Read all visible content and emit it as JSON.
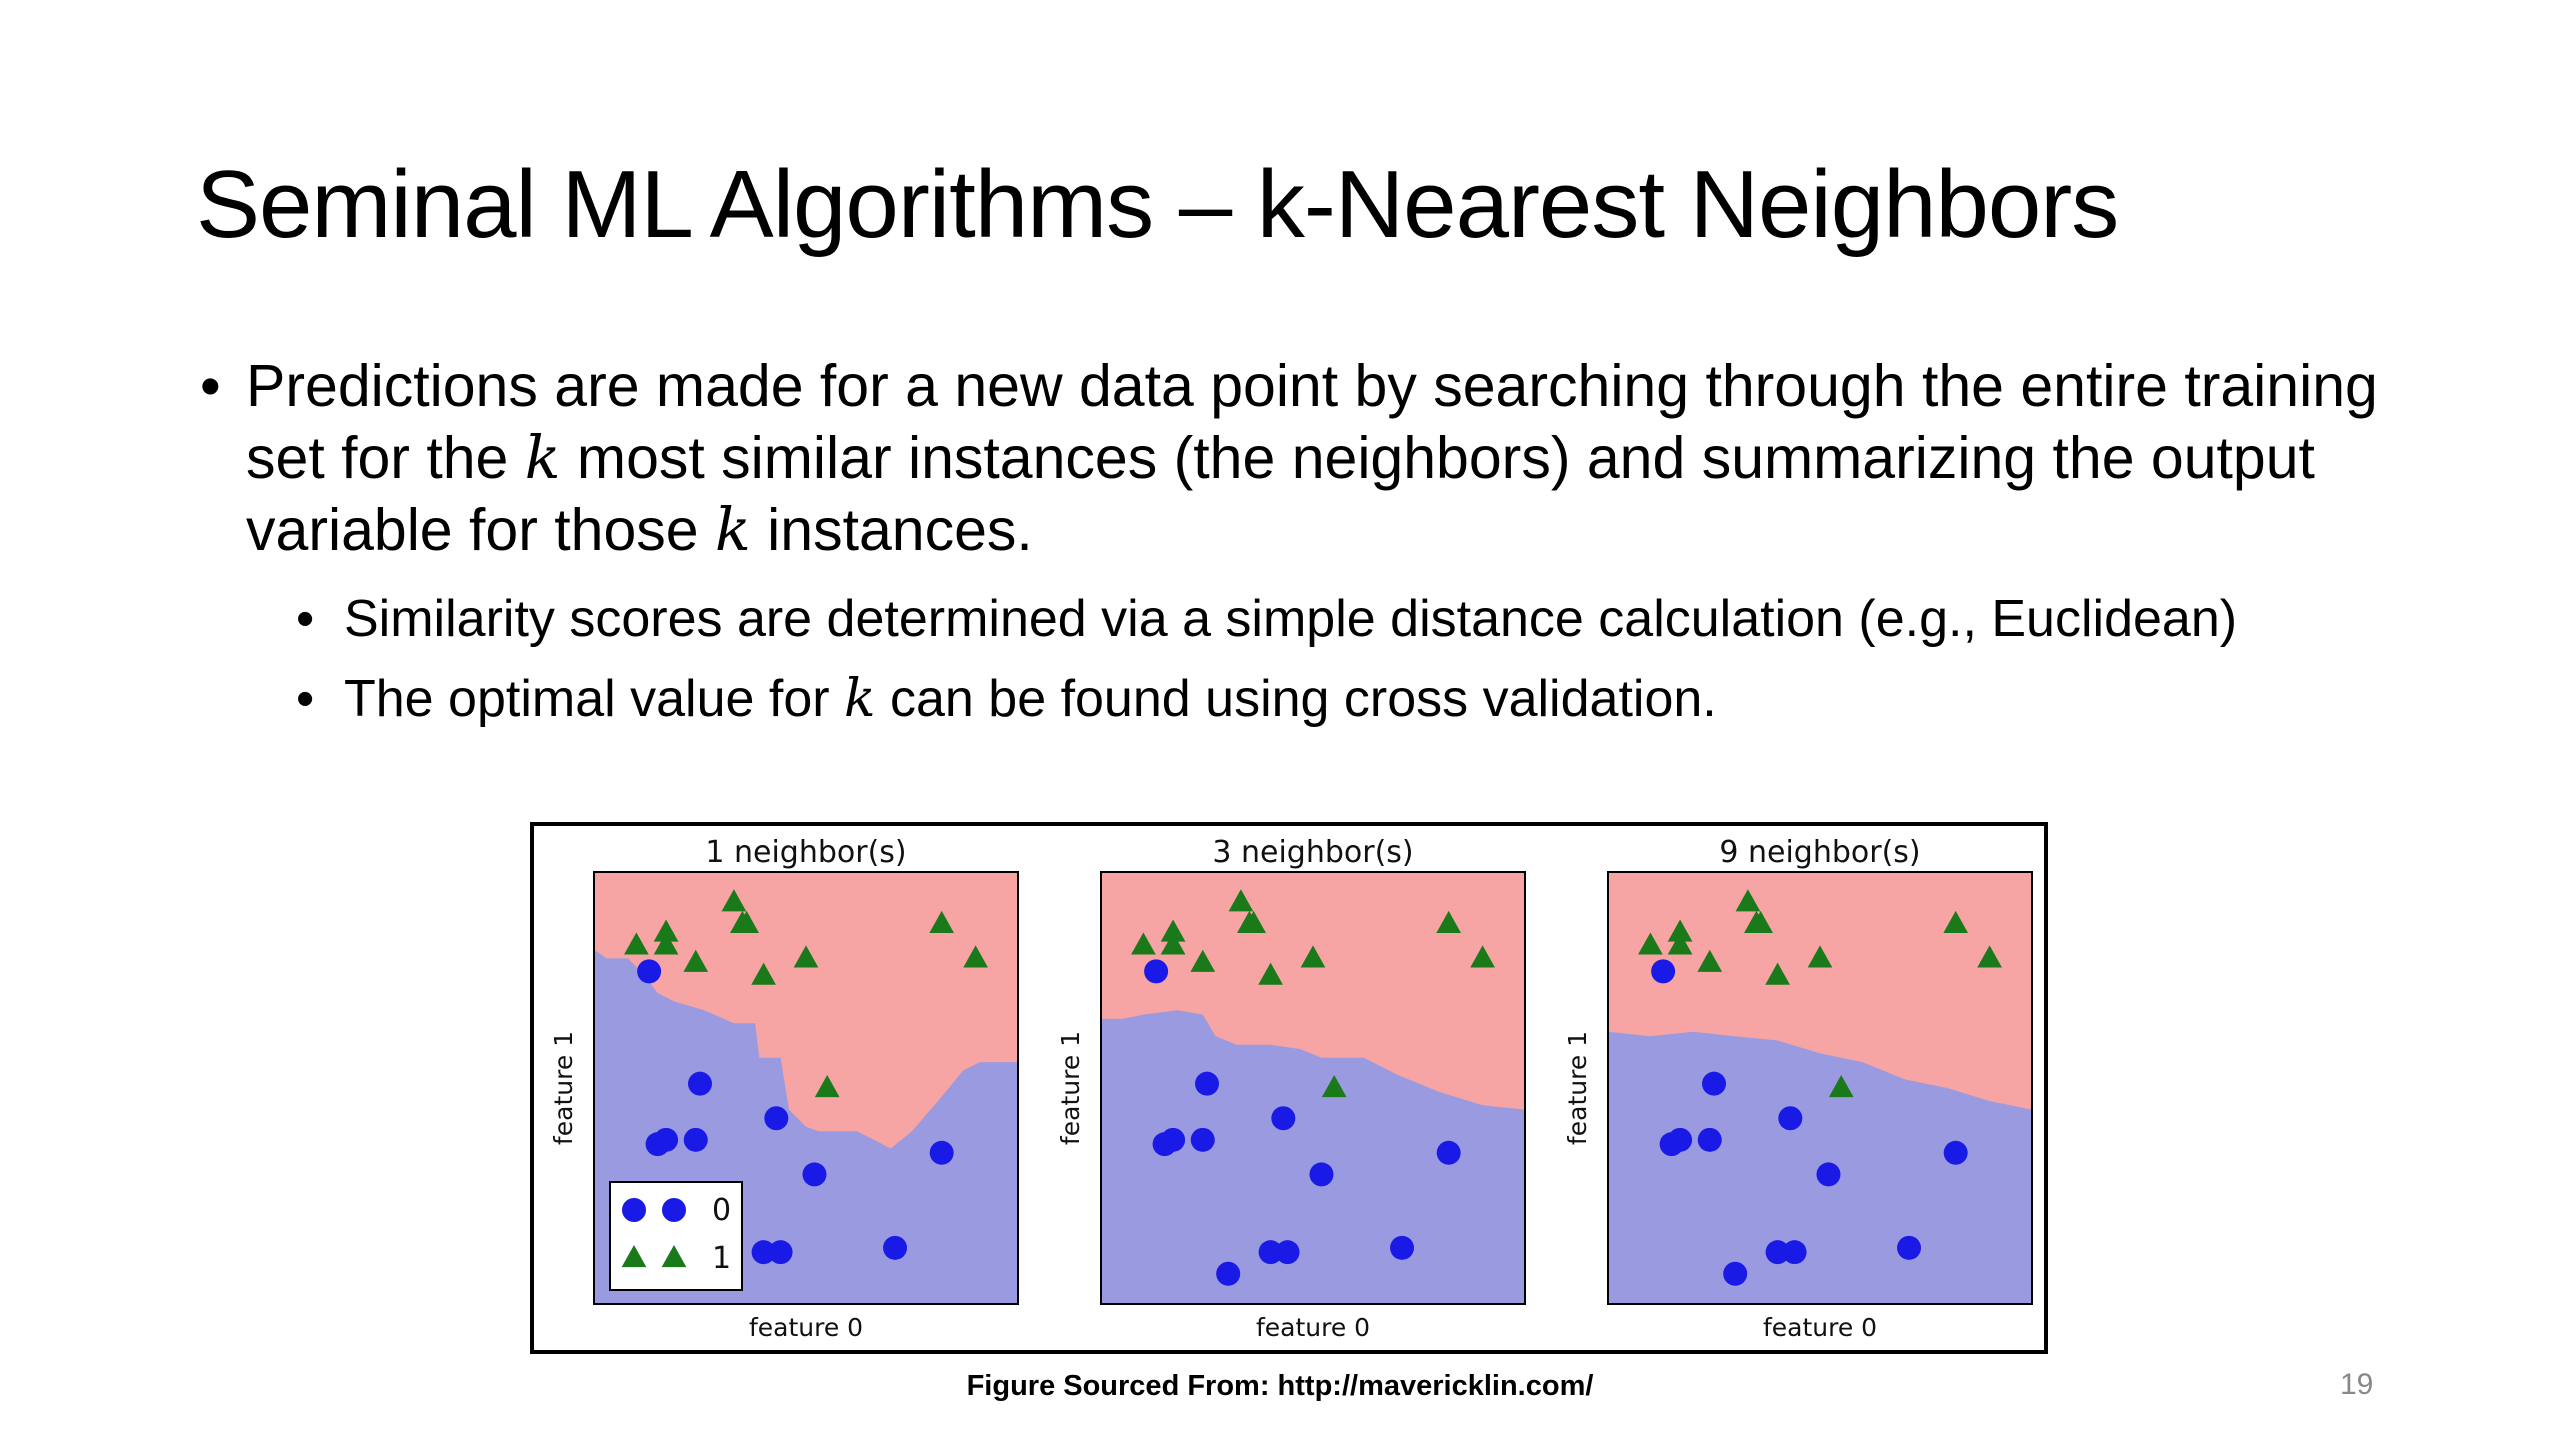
{
  "slide": {
    "title": "Seminal ML Algorithms – k-Nearest Neighbors",
    "bullet_main_1": "Predictions are made for a new data point by searching through the entire training set for the ",
    "k": "k",
    "bullet_main_2": " most similar instances (the neighbors) and summarizing the output variable for those ",
    "bullet_main_3": " instances.",
    "sub_bullet_1": "Similarity scores are determined via a simple distance calculation (e.g., Euclidean)",
    "sub_bullet_2a": "The optimal value for ",
    "sub_bullet_2b": " can be found using cross validation.",
    "bullet_glyph": "•",
    "caption": "Figure Sourced From: http://mavericklin.com/",
    "page_number": "19"
  },
  "chart_data": [
    {
      "type": "scatter",
      "title": "1 neighbor(s)",
      "xlabel": "feature 0",
      "ylabel": "feature 1",
      "boundary": [
        [
          0,
          82
        ],
        [
          3,
          80
        ],
        [
          8,
          80
        ],
        [
          12,
          76
        ],
        [
          15,
          72
        ],
        [
          19,
          70
        ],
        [
          26,
          68
        ],
        [
          33,
          65
        ],
        [
          38,
          65
        ],
        [
          39,
          57
        ],
        [
          44,
          57
        ],
        [
          46,
          45
        ],
        [
          50,
          41
        ],
        [
          53,
          40
        ],
        [
          57,
          40
        ],
        [
          62,
          40
        ],
        [
          66,
          38
        ],
        [
          70,
          36
        ],
        [
          75,
          40
        ],
        [
          82,
          48
        ],
        [
          87,
          54
        ],
        [
          91,
          56
        ],
        [
          100,
          56
        ]
      ]
    },
    {
      "type": "scatter",
      "title": "3 neighbor(s)",
      "xlabel": "feature 0",
      "ylabel": "feature 1",
      "boundary": [
        [
          0,
          66
        ],
        [
          5,
          66
        ],
        [
          10,
          67
        ],
        [
          18,
          68
        ],
        [
          24,
          67
        ],
        [
          27,
          62
        ],
        [
          32,
          60
        ],
        [
          40,
          60
        ],
        [
          47,
          59
        ],
        [
          52,
          57
        ],
        [
          62,
          57
        ],
        [
          70,
          53
        ],
        [
          80,
          49
        ],
        [
          90,
          46
        ],
        [
          100,
          45
        ]
      ]
    },
    {
      "type": "scatter",
      "title": "9 neighbor(s)",
      "xlabel": "feature 0",
      "ylabel": "feature 1",
      "boundary": [
        [
          0,
          63
        ],
        [
          10,
          62
        ],
        [
          20,
          63
        ],
        [
          30,
          62
        ],
        [
          40,
          61
        ],
        [
          50,
          58
        ],
        [
          60,
          56
        ],
        [
          70,
          52
        ],
        [
          80,
          50
        ],
        [
          90,
          47
        ],
        [
          100,
          45
        ]
      ]
    }
  ],
  "dataset": {
    "xlim": [
      0,
      100
    ],
    "ylim": [
      0,
      100
    ],
    "class0": [
      [
        13,
        77
      ],
      [
        25,
        51
      ],
      [
        43,
        43
      ],
      [
        24,
        38
      ],
      [
        15,
        37
      ],
      [
        17,
        38
      ],
      [
        52,
        30
      ],
      [
        82,
        35
      ],
      [
        40,
        12
      ],
      [
        44,
        12
      ],
      [
        71,
        13
      ],
      [
        30,
        7
      ]
    ],
    "class1": [
      [
        10,
        83
      ],
      [
        17,
        83
      ],
      [
        17,
        86
      ],
      [
        33,
        93
      ],
      [
        35,
        88
      ],
      [
        36,
        88
      ],
      [
        24,
        79
      ],
      [
        40,
        76
      ],
      [
        50,
        80
      ],
      [
        55,
        50
      ],
      [
        82,
        88
      ],
      [
        90,
        80
      ]
    ],
    "legend": {
      "class0": "0",
      "class1": "1"
    },
    "colors": {
      "region0": "#9a9ae0",
      "region1": "#f6a4a4",
      "point0": "#1a1ae6",
      "point1": "#1a7a1a"
    }
  }
}
